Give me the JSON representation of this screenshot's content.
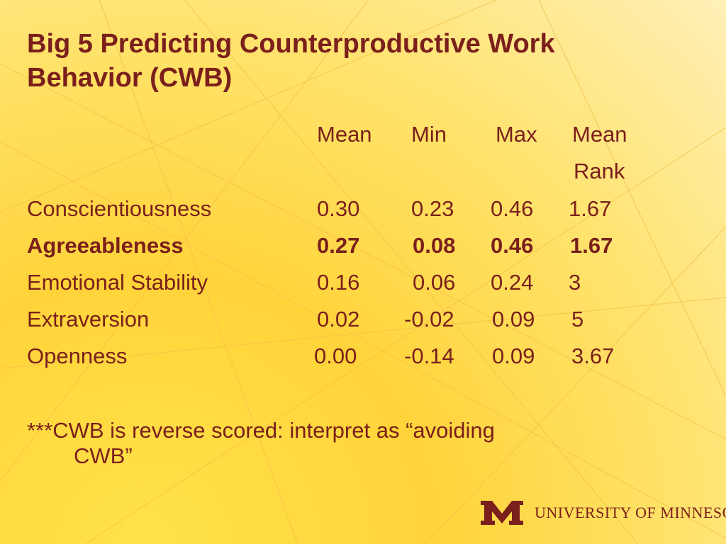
{
  "slide": {
    "title_line1": "Big 5 Predicting Counterproductive Work",
    "title_line2": "Behavior (CWB)"
  },
  "table": {
    "headers": {
      "mean": "Mean",
      "min": "Min",
      "max": "Max",
      "mean_rank_line1": "Mean",
      "mean_rank_line2": "Rank"
    },
    "rows": [
      {
        "trait": "Conscientiousness",
        "mean": "0.30",
        "min": "0.23",
        "max": "0.46",
        "rank": "1.67"
      },
      {
        "trait": "Agreeableness",
        "mean": "0.27",
        "min": "0.08",
        "max": "0.46",
        "rank": "1.67"
      },
      {
        "trait": "Emotional Stability",
        "mean": "0.16",
        "min": "0.06",
        "max": "0.24",
        "rank": "3"
      },
      {
        "trait": "Extraversion",
        "mean": "0.02",
        "min": "-0.02",
        "max": "0.09",
        "rank": "5"
      },
      {
        "trait": "Openness",
        "mean": "0.00",
        "min": "-0.14",
        "max": "0.09",
        "rank": "3.67"
      }
    ]
  },
  "footnote": {
    "line1": "***CWB is reverse scored: interpret as “avoiding",
    "line2": "CWB”"
  },
  "branding": {
    "logo_icon": "university-m-logo-icon",
    "name": "UNIVERSITY OF MINNESOTA",
    "color": "#7a1f1c"
  }
}
